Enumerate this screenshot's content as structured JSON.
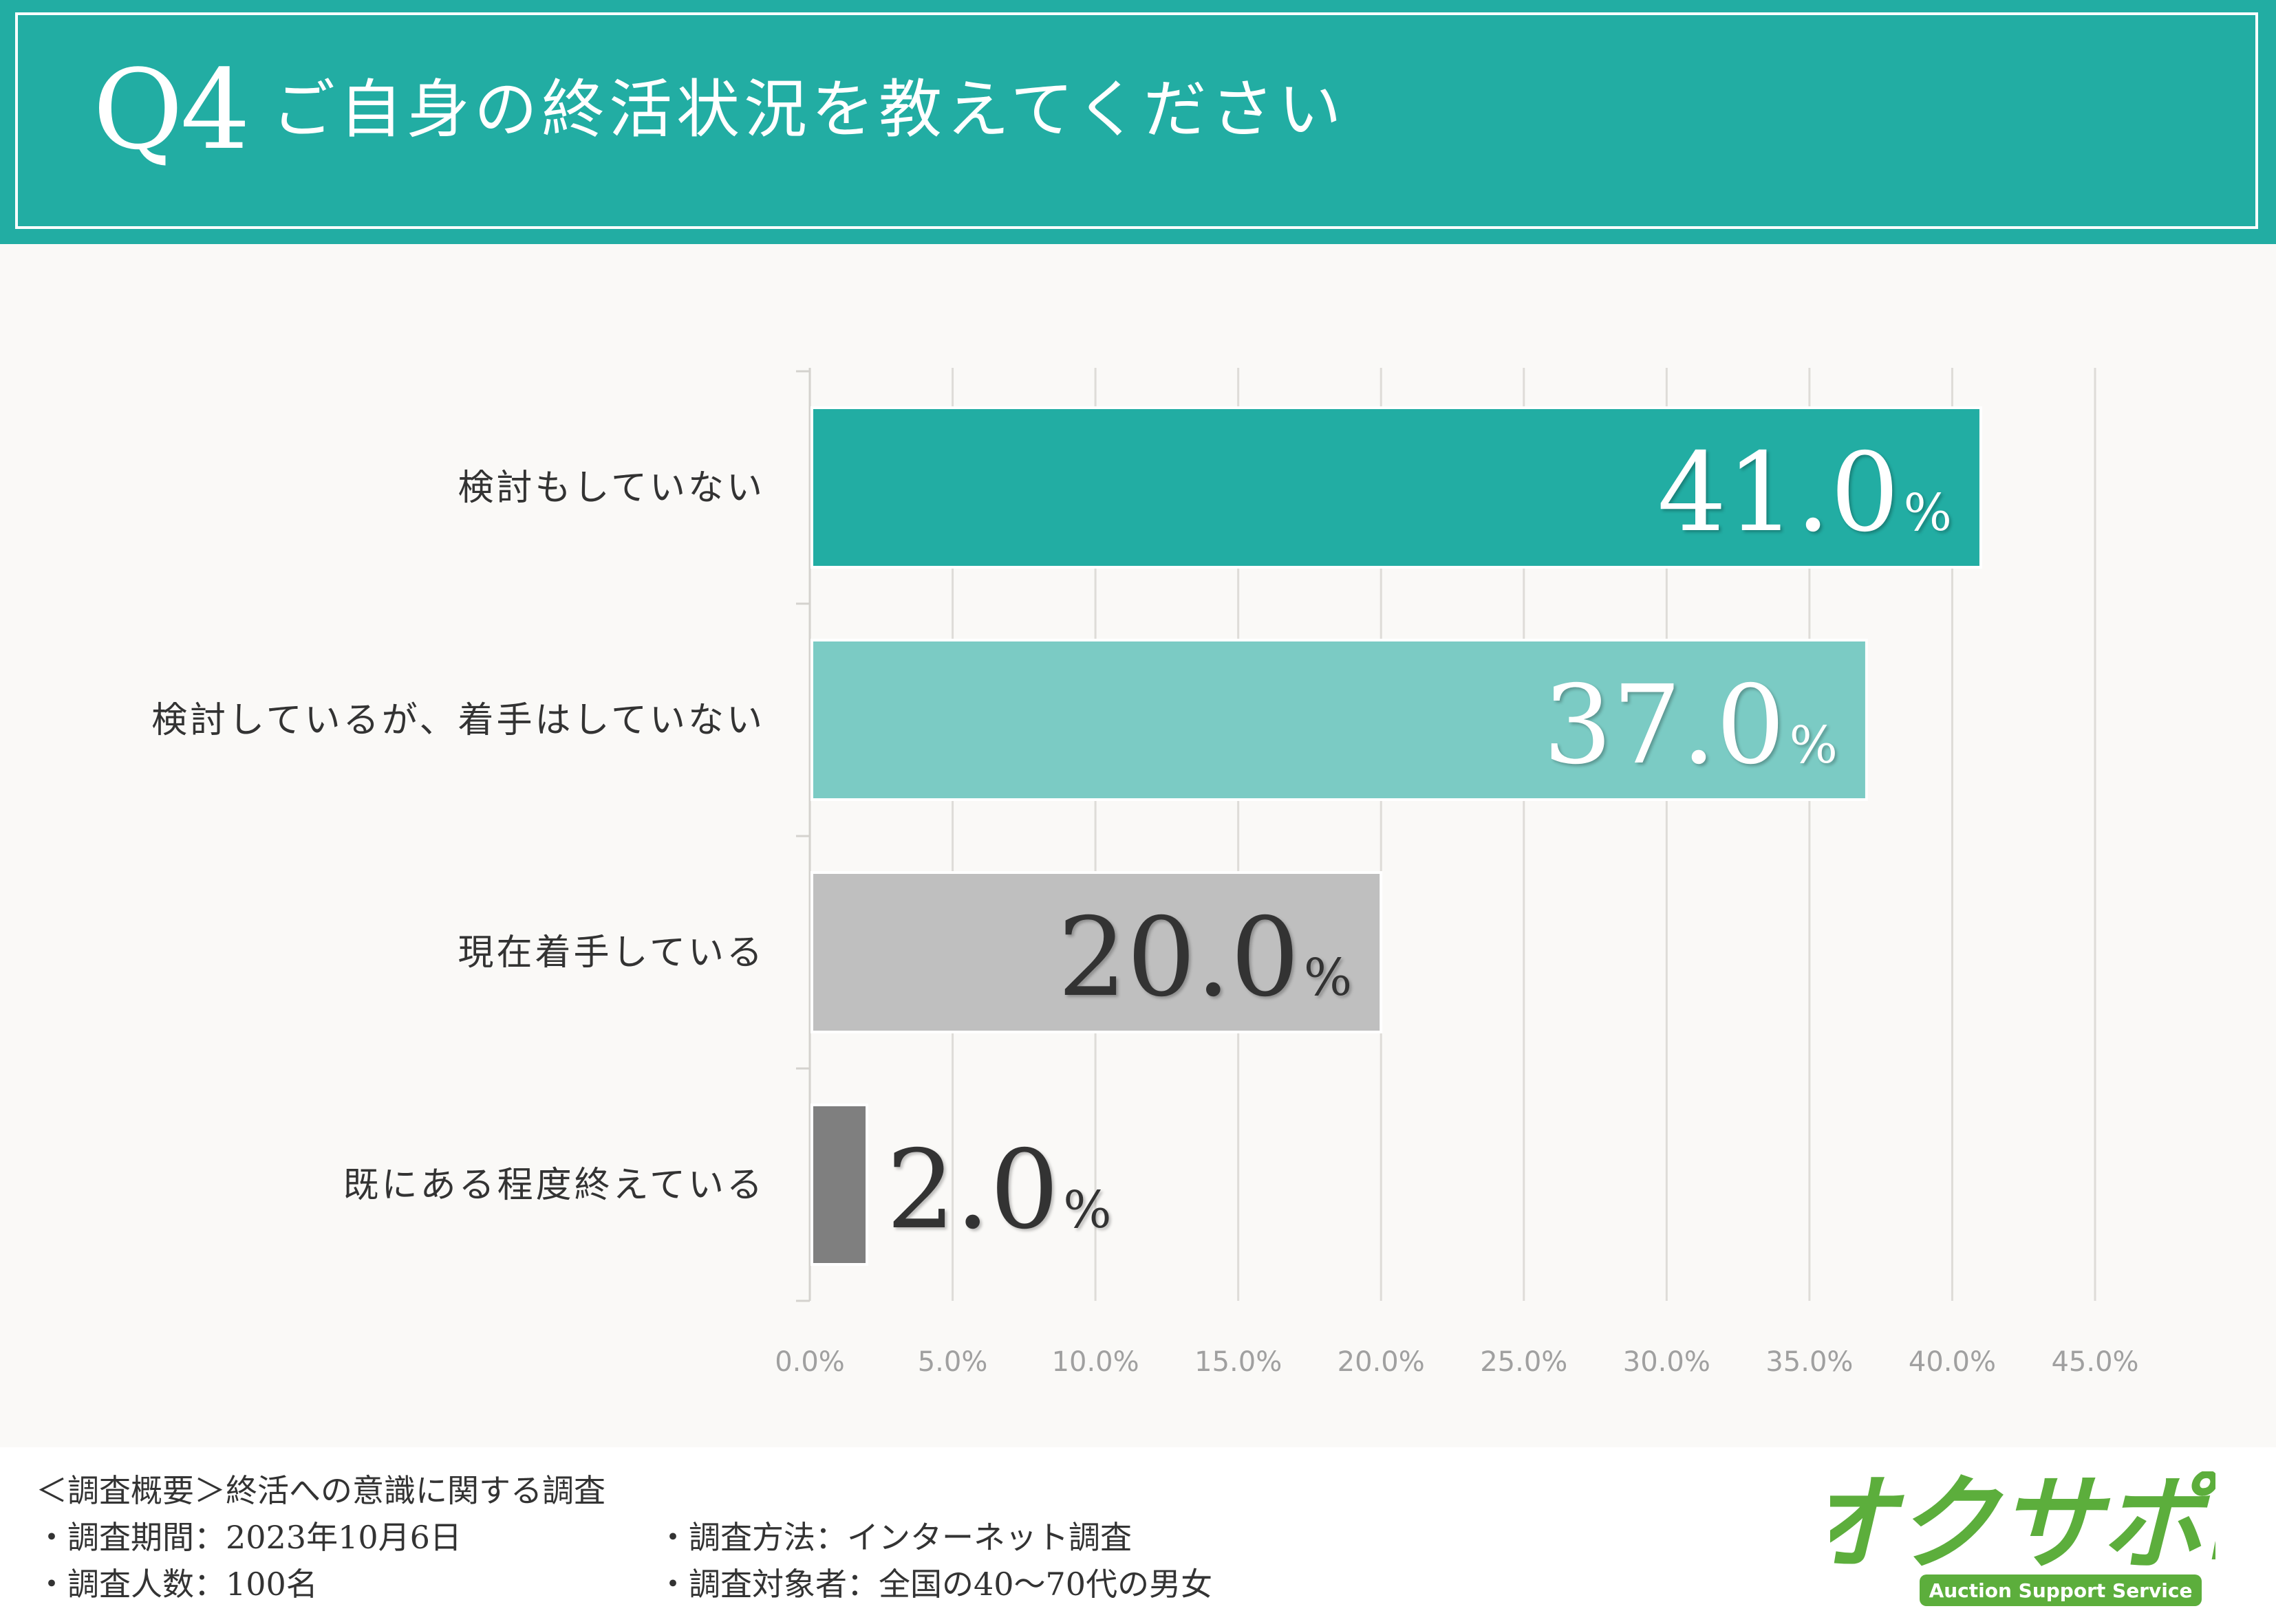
{
  "header": {
    "q_number": "Q4",
    "title": "ご自身の終活状況を教えてください"
  },
  "chart_data": {
    "type": "bar",
    "orientation": "horizontal",
    "categories": [
      "検討もしていない",
      "検討しているが、着手はしていない",
      "現在着手している",
      "既にある程度終えている"
    ],
    "values": [
      41.0,
      37.0,
      20.0,
      2.0
    ],
    "value_labels": [
      "41.0",
      "37.0",
      "20.0",
      "2.0"
    ],
    "value_unit": "%",
    "bar_colors": [
      "#22ada3",
      "#7bcbc4",
      "#bfbfbf",
      "#7f7f7f"
    ],
    "label_colors": [
      "#ffffff",
      "#ffffff",
      "#333333",
      "#333333"
    ],
    "xlim": [
      0,
      45
    ],
    "xticks": [
      "0.0%",
      "5.0%",
      "10.0%",
      "15.0%",
      "20.0%",
      "25.0%",
      "30.0%",
      "35.0%",
      "40.0%",
      "45.0%"
    ],
    "grid": true
  },
  "footer": {
    "overview": "＜調査概要＞終活への意識に関する調査",
    "period": "・調査期間：2023年10月6日",
    "method": "・調査方法：インターネット調査",
    "count": "・調査人数：100名",
    "target": "・調査対象者：全国の40〜70代の男女"
  },
  "logo": {
    "name": "オクサポ!",
    "tagline": "Auction Support Service",
    "color": "#5cae3c"
  }
}
